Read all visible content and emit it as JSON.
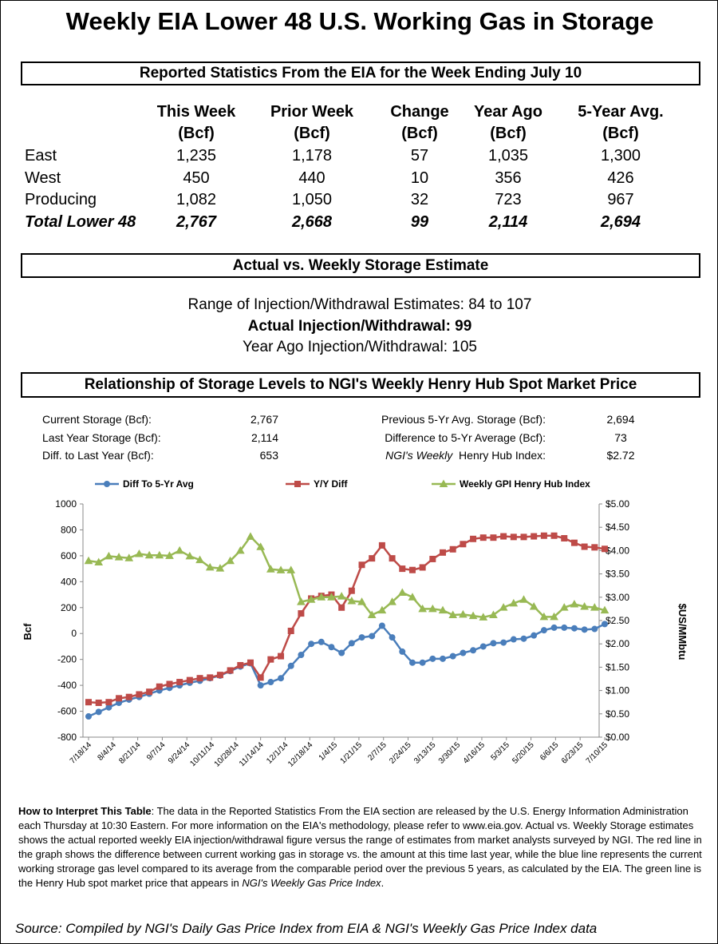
{
  "title": "Weekly EIA Lower 48 U.S. Working Gas in Storage",
  "reported": {
    "heading": "Reported Statistics From the EIA for the Week Ending July 10",
    "columns": [
      [
        "This Week",
        "(Bcf)"
      ],
      [
        "Prior Week",
        "(Bcf)"
      ],
      [
        "Change",
        "(Bcf)"
      ],
      [
        "Year Ago",
        "(Bcf)"
      ],
      [
        "5-Year Avg.",
        "(Bcf)"
      ]
    ],
    "rows": [
      [
        "East",
        "1,235",
        "1,178",
        "57",
        "1,035",
        "1,300"
      ],
      [
        "West",
        "450",
        "440",
        "10",
        "356",
        "426"
      ],
      [
        "Producing",
        "1,082",
        "1,050",
        "32",
        "723",
        "967"
      ],
      [
        "Total Lower 48",
        "2,767",
        "2,668",
        "99",
        "2,114",
        "2,694"
      ]
    ]
  },
  "estimate": {
    "heading": "Actual vs. Weekly Storage Estimate",
    "lines": [
      "Range of Injection/Withdrawal Estimates: 84 to 107",
      "Actual Injection/Withdrawal: 99",
      "Year Ago Injection/Withdrawal: 105"
    ]
  },
  "relationship": {
    "heading": "Relationship of Storage Levels to NGI's Weekly Henry Hub Spot Market Price",
    "stats_left": [
      {
        "label": "Current Storage (Bcf):",
        "value": "2,767"
      },
      {
        "label": "Last Year Storage (Bcf):",
        "value": "2,114"
      },
      {
        "label": "Diff. to Last Year (Bcf):",
        "value": "653"
      }
    ],
    "stats_right": [
      {
        "label": "Previous 5-Yr Avg. Storage (Bcf):",
        "value": "2,694"
      },
      {
        "label": "Difference to 5-Yr Average (Bcf):",
        "value": "73"
      },
      {
        "label_italic": "NGI's Weekly",
        "label": "Henry Hub Index:",
        "value": "$2.72"
      }
    ]
  },
  "chart_data": {
    "type": "line",
    "xticks": [
      "7/18/14",
      "8/4/14",
      "8/21/14",
      "9/7/14",
      "9/24/14",
      "10/11/14",
      "10/28/14",
      "11/14/14",
      "12/1/14",
      "12/18/14",
      "1/4/15",
      "1/21/15",
      "2/7/15",
      "2/24/15",
      "3/13/15",
      "3/30/15",
      "4/16/15",
      "5/3/15",
      "5/20/15",
      "6/6/15",
      "6/23/15",
      "7/10/15"
    ],
    "y_label": "Bcf",
    "y2_label": "$US/MMbtu",
    "ylim": [
      -800,
      1000
    ],
    "yticks": [
      -800,
      -600,
      -400,
      -200,
      0,
      200,
      400,
      600,
      800,
      1000
    ],
    "y2lim": [
      0,
      5
    ],
    "y2ticks": [
      {
        "value": 0,
        "label": "$0.00"
      },
      {
        "value": 0.5,
        "label": "$0.50"
      },
      {
        "value": 1,
        "label": "$1.00"
      },
      {
        "value": 1.5,
        "label": "$1.50"
      },
      {
        "value": 2,
        "label": "$2.00"
      },
      {
        "value": 2.5,
        "label": "$2.50"
      },
      {
        "value": 3,
        "label": "$3.00"
      },
      {
        "value": 3.5,
        "label": "$3.50"
      },
      {
        "value": 4,
        "label": "$4.00"
      },
      {
        "value": 4.5,
        "label": "$4.50"
      },
      {
        "value": 5,
        "label": "$5.00"
      }
    ],
    "grid": false,
    "legend": "top",
    "series": [
      {
        "name": "Diff To 5-Yr Avg",
        "color": "#4a7ebb",
        "marker": "circle",
        "values": [
          -640,
          -605,
          -570,
          -535,
          -510,
          -490,
          -465,
          -440,
          -420,
          -400,
          -380,
          -365,
          -345,
          -325,
          -290,
          -255,
          -230,
          -400,
          -375,
          -345,
          -250,
          -165,
          -80,
          -65,
          -105,
          -150,
          -75,
          -30,
          -20,
          60,
          -30,
          -140,
          -225,
          -225,
          -195,
          -195,
          -175,
          -150,
          -130,
          -100,
          -75,
          -70,
          -45,
          -40,
          -15,
          25,
          45,
          45,
          40,
          30,
          35,
          73
        ]
      },
      {
        "name": "Y/Y Diff",
        "color": "#be4b48",
        "marker": "square",
        "values": [
          -530,
          -535,
          -530,
          -500,
          -490,
          -470,
          -450,
          -410,
          -390,
          -375,
          -360,
          -345,
          -340,
          -320,
          -285,
          -245,
          -225,
          -340,
          -200,
          -175,
          20,
          155,
          270,
          290,
          300,
          200,
          330,
          530,
          580,
          680,
          580,
          500,
          490,
          510,
          575,
          625,
          650,
          690,
          730,
          740,
          740,
          750,
          745,
          745,
          750,
          755,
          755,
          735,
          700,
          670,
          665,
          653
        ]
      },
      {
        "name": "Weekly GPI Henry Hub Index",
        "color": "#98b954",
        "marker": "triangle",
        "axis": "y2",
        "values": [
          3.78,
          3.75,
          3.88,
          3.86,
          3.84,
          3.93,
          3.9,
          3.9,
          3.89,
          4.0,
          3.88,
          3.8,
          3.64,
          3.62,
          3.78,
          4.0,
          4.3,
          4.08,
          3.6,
          3.58,
          3.58,
          2.9,
          2.95,
          3.0,
          3.0,
          3.02,
          2.92,
          2.9,
          2.62,
          2.72,
          2.9,
          3.1,
          3.0,
          2.75,
          2.75,
          2.72,
          2.62,
          2.63,
          2.6,
          2.57,
          2.62,
          2.78,
          2.87,
          2.95,
          2.8,
          2.58,
          2.58,
          2.78,
          2.85,
          2.8,
          2.78,
          2.72
        ]
      }
    ]
  },
  "note": {
    "lead": "How to Interpret This Table",
    "text": ": The data in the Reported Statistics From the EIA section are released by the U.S. Energy Information Administration each Thursday at 10:30 Eastern. For more information on the EIA's methodology, please refer to www.eia.gov. Actual vs. Weekly Storage estimates shows the actual reported weekly EIA injection/withdrawal figure versus the range of estimates from market analysts surveyed by NGI. The red  line in the graph shows the difference between current working gas in storage vs. the amount at this time last year, while the blue line represents the current working strorage gas level  compared to its average from the comparable period over the previous 5 years, as calculated by the EIA. The green line is the Henry Hub spot market price that appears in ",
    "italic": "NGI's Weekly Gas Price Index",
    "end": "."
  },
  "source": "Source: Compiled by NGI's Daily Gas Price Index from EIA & NGI's Weekly Gas Price Index data"
}
